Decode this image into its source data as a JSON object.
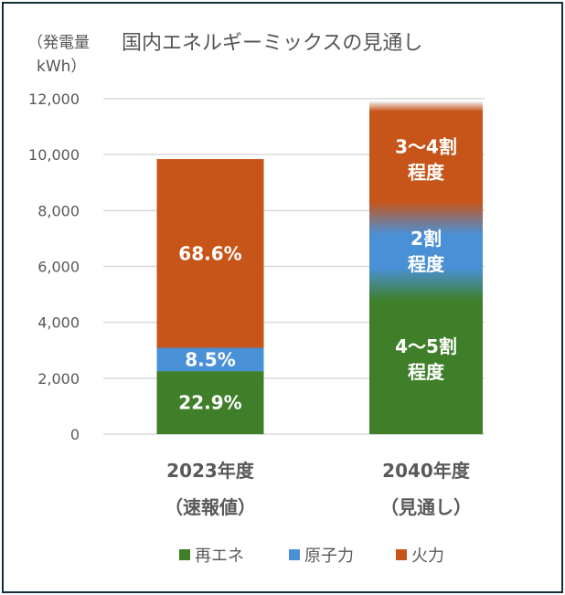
{
  "chart_data": {
    "type": "bar",
    "stacked": true,
    "title": "国内エネルギーミックスの見通し",
    "ylabel": "（発電量\nkWh）",
    "ylim": [
      0,
      12000
    ],
    "yticks": [
      0,
      2000,
      4000,
      6000,
      8000,
      10000,
      12000
    ],
    "ytick_labels": [
      "0",
      "2,000",
      "4,000",
      "6,000",
      "8,000",
      "10,000",
      "12,000"
    ],
    "grid": true,
    "legend_position": "bottom",
    "categories": [
      {
        "line1": "2023年度",
        "line2": "（速報値）"
      },
      {
        "line1": "2040年度",
        "line2": "（見通し）"
      }
    ],
    "totals": [
      9840,
      11900
    ],
    "series": [
      {
        "name": "再エネ",
        "color": "#3f7f2a",
        "labels": [
          "22.9%",
          "4〜5割\n程度"
        ],
        "shares": [
          22.9,
          45
        ]
      },
      {
        "name": "原子力",
        "color": "#4a90d6",
        "labels": [
          "8.5%",
          "2割\n程度"
        ],
        "shares": [
          8.5,
          20
        ]
      },
      {
        "name": "火力",
        "color": "#c75418",
        "labels": [
          "68.6%",
          "3〜4割\n程度"
        ],
        "shares": [
          68.6,
          35
        ]
      }
    ],
    "blended_category_index": 1
  }
}
